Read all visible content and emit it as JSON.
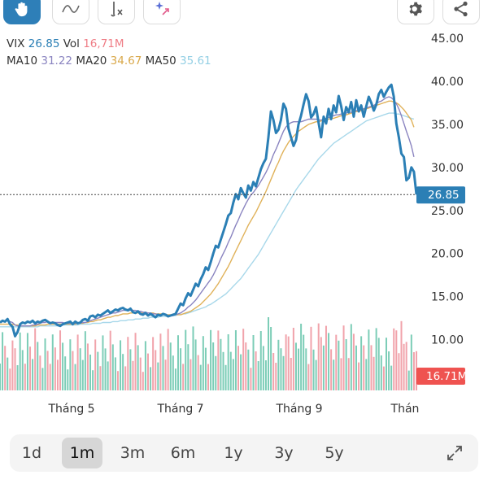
{
  "toolbar": {
    "tools": [
      {
        "name": "hand-tool-icon",
        "active": true
      },
      {
        "name": "line-tool-icon",
        "active": false
      },
      {
        "name": "fx-indicator-icon",
        "active": false
      },
      {
        "name": "ai-magic-icon",
        "active": false
      }
    ],
    "right": [
      "settings-gear-icon",
      "share-icon"
    ]
  },
  "legend": {
    "symbol": "VIX",
    "price": "26.85",
    "vol_label": "Vol",
    "vol": "16,71M",
    "ma10_label": "MA10",
    "ma10": "31.22",
    "ma20_label": "MA20",
    "ma20": "34.67",
    "ma50_label": "MA50",
    "ma50": "35.61"
  },
  "colors": {
    "price": "#2b7fb5",
    "ma10": "#8a84c0",
    "ma20": "#e0b25a",
    "ma50": "#a8d8ea",
    "vol_up": "#7ccdb7",
    "vol_down": "#f1a3ab",
    "badge_price": "#2b7fb5",
    "badge_vol": "#ef5350"
  },
  "chart_data": {
    "type": "line",
    "title": "",
    "xlabel": "",
    "ylabel": "",
    "ylim": [
      6,
      45
    ],
    "y_ticks": [
      "45.00",
      "40.00",
      "35.00",
      "30.00",
      "25.00",
      "20.00",
      "15.00",
      "10.00"
    ],
    "x_ticks": [
      "Tháng 5",
      "Tháng 7",
      "Tháng 9",
      "Thán"
    ],
    "last_price_label": "26.85",
    "last_volume_label": "16.71M",
    "series": [
      {
        "name": "VIX",
        "values": [
          12.0,
          12.2,
          12.1,
          12.4,
          11.8,
          11.5,
          10.4,
          10.9,
          11.8,
          12.0,
          11.9,
          12.1,
          12.0,
          12.2,
          11.9,
          12.1,
          12.0,
          12.2,
          12.3,
          12.1,
          11.9,
          12.0,
          11.9,
          11.7,
          11.6,
          11.8,
          11.9,
          12.0,
          12.1,
          11.8,
          12.1,
          11.9,
          12.0,
          12.3,
          12.4,
          12.2,
          12.7,
          12.8,
          12.6,
          12.9,
          12.8,
          13.0,
          13.2,
          13.4,
          13.1,
          13.3,
          13.5,
          13.4,
          13.6,
          13.7,
          13.5,
          13.4,
          13.6,
          13.2,
          13.1,
          13.3,
          13.0,
          12.9,
          13.1,
          12.8,
          13.0,
          12.8,
          12.6,
          12.9,
          12.8,
          13.0,
          12.9,
          12.7,
          12.8,
          12.9,
          13.0,
          13.6,
          14.2,
          14.0,
          14.8,
          15.4,
          15.1,
          15.8,
          16.5,
          16.2,
          17.0,
          17.6,
          18.4,
          18.1,
          19.0,
          20.0,
          20.9,
          20.7,
          21.6,
          22.5,
          23.4,
          24.4,
          24.7,
          25.9,
          26.9,
          26.3,
          27.6,
          27.0,
          26.5,
          27.9,
          27.3,
          28.3,
          27.8,
          28.8,
          29.8,
          30.5,
          31.0,
          33.5,
          36.5,
          35.5,
          34.0,
          34.4,
          35.5,
          37.4,
          36.8,
          34.5,
          33.5,
          32.5,
          33.2,
          35.0,
          36.0,
          37.3,
          38.5,
          37.7,
          35.8,
          36.2,
          37.0,
          35.2,
          33.5,
          35.9,
          35.1,
          36.8,
          35.6,
          37.2,
          36.4,
          38.3,
          37.1,
          35.5,
          37.0,
          36.4,
          37.6,
          35.9,
          37.8,
          36.5,
          37.2,
          35.9,
          37.1,
          38.2,
          37.5,
          36.6,
          37.3,
          38.5,
          39.0,
          38.2,
          38.8,
          39.3,
          39.6,
          38.2,
          35.1,
          33.5,
          31.6,
          31.2,
          28.5,
          28.8,
          30.0,
          29.5,
          26.85
        ]
      },
      {
        "name": "MA10",
        "values": [
          12.0,
          12.1,
          12.1,
          12.2,
          12.1,
          12.0,
          11.7,
          11.6,
          11.6,
          11.6,
          11.6,
          11.6,
          11.6,
          11.7,
          11.7,
          11.8,
          11.9,
          12.0,
          12.0,
          12.1,
          12.0,
          12.0,
          12.0,
          12.0,
          12.0,
          12.0,
          11.9,
          11.9,
          11.9,
          11.9,
          11.9,
          11.9,
          11.9,
          12.0,
          12.0,
          12.1,
          12.2,
          12.3,
          12.4,
          12.5,
          12.6,
          12.7,
          12.8,
          12.9,
          13.0,
          13.1,
          13.1,
          13.2,
          13.3,
          13.4,
          13.4,
          13.4,
          13.4,
          13.4,
          13.4,
          13.3,
          13.3,
          13.2,
          13.2,
          13.1,
          13.1,
          13.0,
          13.0,
          12.9,
          12.9,
          12.9,
          12.9,
          12.8,
          12.8,
          12.8,
          12.9,
          13.0,
          13.1,
          13.3,
          13.5,
          13.8,
          14.0,
          14.3,
          14.6,
          15.0,
          15.4,
          15.8,
          16.2,
          16.6,
          17.0,
          17.5,
          18.1,
          18.7,
          19.4,
          20.0,
          20.6,
          21.3,
          21.9,
          22.6,
          23.3,
          23.9,
          24.6,
          25.2,
          25.8,
          26.3,
          26.8,
          27.1,
          27.5,
          27.9,
          28.4,
          28.9,
          29.4,
          30.0,
          30.7,
          31.5,
          32.1,
          32.8,
          33.5,
          34.2,
          34.7,
          35.0,
          35.2,
          35.3,
          35.3,
          35.3,
          35.3,
          35.4,
          35.5,
          35.6,
          35.6,
          35.6,
          35.6,
          35.5,
          35.5,
          35.6,
          35.7,
          35.8,
          35.9,
          36.0,
          36.1,
          36.1,
          36.2,
          36.3,
          36.3,
          36.4,
          36.4,
          36.5,
          36.6,
          36.6,
          36.7,
          36.8,
          36.9,
          37.0,
          37.1,
          37.2,
          37.4,
          37.6,
          37.7,
          37.9,
          38.1,
          38.2,
          38.1,
          37.8,
          37.4,
          36.8,
          36.0,
          35.1,
          34.2,
          33.4,
          32.5,
          31.22
        ]
      },
      {
        "name": "MA20",
        "values": [
          11.8,
          11.8,
          11.8,
          11.8,
          11.8,
          11.8,
          11.7,
          11.7,
          11.6,
          11.6,
          11.6,
          11.6,
          11.6,
          11.6,
          11.6,
          11.7,
          11.7,
          11.7,
          11.7,
          11.8,
          11.8,
          11.8,
          11.8,
          11.8,
          11.8,
          11.8,
          11.8,
          11.8,
          11.8,
          11.8,
          11.8,
          11.9,
          11.9,
          11.9,
          12.0,
          12.0,
          12.1,
          12.1,
          12.2,
          12.3,
          12.3,
          12.4,
          12.5,
          12.6,
          12.6,
          12.7,
          12.8,
          12.8,
          12.9,
          13.0,
          13.0,
          13.0,
          13.1,
          13.1,
          13.1,
          13.1,
          13.1,
          13.1,
          13.1,
          13.1,
          13.1,
          13.1,
          13.0,
          13.0,
          13.0,
          13.0,
          12.9,
          12.9,
          12.9,
          12.9,
          12.9,
          12.9,
          12.9,
          13.0,
          13.1,
          13.2,
          13.3,
          13.5,
          13.7,
          13.9,
          14.1,
          14.4,
          14.7,
          15.0,
          15.3,
          15.7,
          16.1,
          16.5,
          17.0,
          17.5,
          18.0,
          18.5,
          19.1,
          19.7,
          20.3,
          20.9,
          21.5,
          22.1,
          22.7,
          23.3,
          23.8,
          24.3,
          24.8,
          25.4,
          26.0,
          26.6,
          27.2,
          27.9,
          28.6,
          29.3,
          30.0,
          30.6,
          31.3,
          31.9,
          32.4,
          32.9,
          33.3,
          33.6,
          33.9,
          34.2,
          34.4,
          34.6,
          34.8,
          35.0,
          35.1,
          35.2,
          35.3,
          35.3,
          35.4,
          35.5,
          35.5,
          35.6,
          35.7,
          35.7,
          35.8,
          35.9,
          36.0,
          36.0,
          36.1,
          36.2,
          36.3,
          36.4,
          36.5,
          36.5,
          36.6,
          36.7,
          36.8,
          36.9,
          37.0,
          37.1,
          37.2,
          37.3,
          37.4,
          37.5,
          37.6,
          37.7,
          37.7,
          37.6,
          37.5,
          37.3,
          37.0,
          36.7,
          36.3,
          35.9,
          35.5,
          34.67
        ]
      },
      {
        "name": "MA50",
        "values": [
          11.5,
          11.5,
          11.5,
          11.5,
          11.5,
          11.5,
          11.5,
          11.5,
          11.5,
          11.5,
          11.5,
          11.5,
          11.5,
          11.5,
          11.5,
          11.5,
          11.6,
          11.6,
          11.6,
          11.6,
          11.6,
          11.6,
          11.6,
          11.6,
          11.6,
          11.7,
          11.7,
          11.7,
          11.7,
          11.7,
          11.7,
          11.7,
          11.8,
          11.8,
          11.8,
          11.8,
          11.8,
          11.9,
          11.9,
          11.9,
          11.9,
          12.0,
          12.0,
          12.0,
          12.0,
          12.1,
          12.1,
          12.1,
          12.2,
          12.2,
          12.2,
          12.3,
          12.3,
          12.3,
          12.4,
          12.4,
          12.4,
          12.5,
          12.5,
          12.5,
          12.6,
          12.6,
          12.6,
          12.6,
          12.7,
          12.7,
          12.7,
          12.7,
          12.8,
          12.8,
          12.8,
          12.9,
          12.9,
          13.0,
          13.0,
          13.1,
          13.2,
          13.3,
          13.4,
          13.5,
          13.6,
          13.7,
          13.8,
          14.0,
          14.1,
          14.3,
          14.5,
          14.7,
          14.9,
          15.1,
          15.3,
          15.6,
          15.9,
          16.2,
          16.5,
          16.8,
          17.1,
          17.5,
          17.9,
          18.3,
          18.7,
          19.1,
          19.5,
          19.9,
          20.4,
          20.9,
          21.4,
          21.9,
          22.4,
          22.9,
          23.4,
          23.9,
          24.4,
          24.9,
          25.4,
          25.9,
          26.4,
          26.9,
          27.4,
          27.8,
          28.2,
          28.6,
          29.0,
          29.4,
          29.8,
          30.2,
          30.6,
          31.0,
          31.3,
          31.6,
          31.9,
          32.2,
          32.5,
          32.8,
          33.0,
          33.2,
          33.4,
          33.6,
          33.8,
          34.0,
          34.2,
          34.4,
          34.6,
          34.8,
          35.0,
          35.2,
          35.4,
          35.5,
          35.6,
          35.7,
          35.8,
          35.9,
          36.0,
          36.1,
          36.2,
          36.3,
          36.3,
          36.3,
          36.2,
          36.2,
          36.1,
          36.0,
          35.9,
          35.8,
          35.7,
          35.61
        ]
      }
    ]
  },
  "ranges": {
    "items": [
      "1d",
      "1m",
      "3m",
      "6m",
      "1y",
      "3y",
      "5y"
    ],
    "selected": "1m"
  }
}
